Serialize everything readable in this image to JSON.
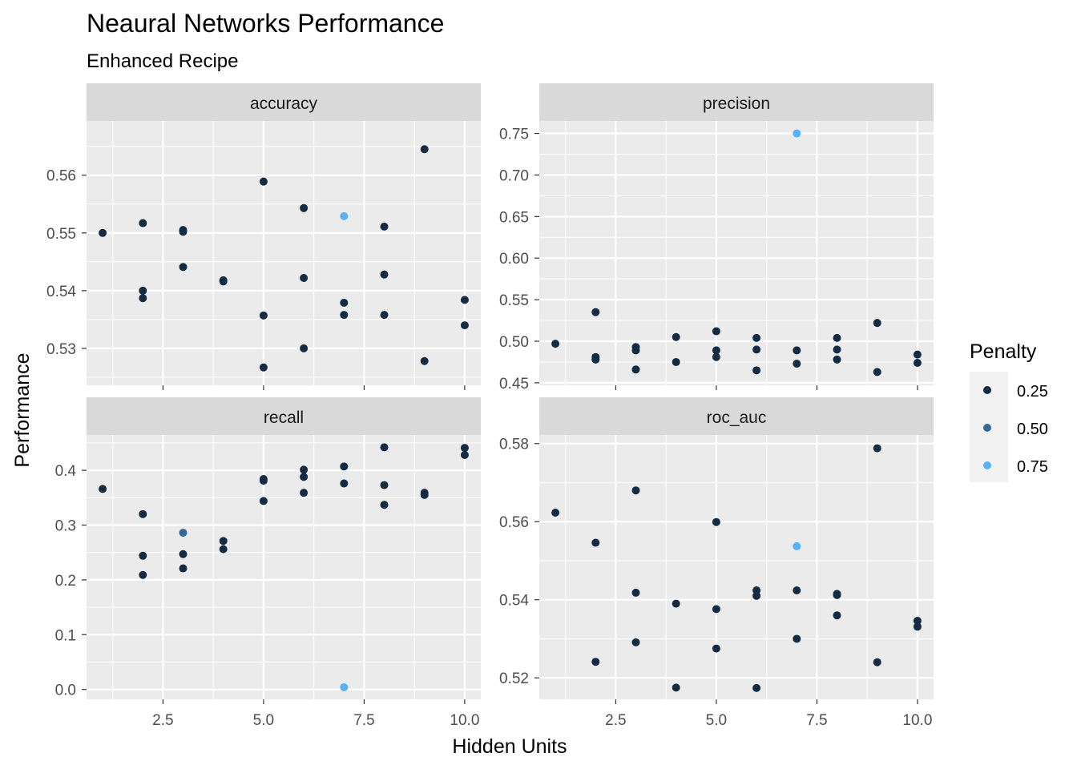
{
  "chart_data": {
    "type": "scatter",
    "title": "Neaural Networks Performance",
    "subtitle": "Enhanced Recipe",
    "xlabel": "Hidden Units",
    "ylabel": "Performance",
    "grid": true,
    "legend": {
      "title": "Penalty",
      "placement": "right",
      "entries": [
        {
          "label": "0.25",
          "color": "#132B43"
        },
        {
          "label": "0.50",
          "color": "#336A98"
        },
        {
          "label": "0.75",
          "color": "#56B1F7"
        }
      ]
    },
    "facets": [
      {
        "name": "accuracy",
        "xlim": [
          0.6,
          10.4
        ],
        "ylim": [
          0.5236,
          0.5694
        ],
        "x_ticks": [
          2.5,
          5.0,
          7.5,
          10.0
        ],
        "x_tick_labels": [],
        "y_ticks": [
          0.53,
          0.54,
          0.55,
          0.56
        ],
        "y_tick_labels": [
          "0.53",
          "0.54",
          "0.55",
          "0.56"
        ],
        "points": [
          {
            "x": 1,
            "y": 0.55,
            "penalty": 0.25
          },
          {
            "x": 2,
            "y": 0.5517,
            "penalty": 0.25
          },
          {
            "x": 2,
            "y": 0.54,
            "penalty": 0.25
          },
          {
            "x": 2,
            "y": 0.5387,
            "penalty": 0.25
          },
          {
            "x": 3,
            "y": 0.5505,
            "penalty": 0.25
          },
          {
            "x": 3,
            "y": 0.5502,
            "penalty": 0.25
          },
          {
            "x": 3,
            "y": 0.5441,
            "penalty": 0.25
          },
          {
            "x": 4,
            "y": 0.5416,
            "penalty": 0.25
          },
          {
            "x": 4,
            "y": 0.5418,
            "penalty": 0.25
          },
          {
            "x": 5,
            "y": 0.5589,
            "penalty": 0.25
          },
          {
            "x": 5,
            "y": 0.5357,
            "penalty": 0.25
          },
          {
            "x": 5,
            "y": 0.5267,
            "penalty": 0.25
          },
          {
            "x": 6,
            "y": 0.5543,
            "penalty": 0.25
          },
          {
            "x": 6,
            "y": 0.5422,
            "penalty": 0.25
          },
          {
            "x": 6,
            "y": 0.53,
            "penalty": 0.25
          },
          {
            "x": 7,
            "y": 0.5529,
            "penalty": 0.75
          },
          {
            "x": 7,
            "y": 0.5379,
            "penalty": 0.25
          },
          {
            "x": 7,
            "y": 0.5358,
            "penalty": 0.25
          },
          {
            "x": 8,
            "y": 0.5511,
            "penalty": 0.25
          },
          {
            "x": 8,
            "y": 0.5428,
            "penalty": 0.25
          },
          {
            "x": 8,
            "y": 0.5358,
            "penalty": 0.25
          },
          {
            "x": 9,
            "y": 0.5645,
            "penalty": 0.25
          },
          {
            "x": 9,
            "y": 0.5278,
            "penalty": 0.25
          },
          {
            "x": 10,
            "y": 0.5384,
            "penalty": 0.25
          },
          {
            "x": 10,
            "y": 0.534,
            "penalty": 0.25
          }
        ]
      },
      {
        "name": "precision",
        "xlim": [
          0.6,
          10.4
        ],
        "ylim": [
          0.447,
          0.765
        ],
        "x_ticks": [
          2.5,
          5.0,
          7.5,
          10.0
        ],
        "x_tick_labels": [],
        "y_ticks": [
          0.45,
          0.5,
          0.55,
          0.6,
          0.65,
          0.7,
          0.75
        ],
        "y_tick_labels": [
          "0.45",
          "0.50",
          "0.55",
          "0.60",
          "0.65",
          "0.70",
          "0.75"
        ],
        "points": [
          {
            "x": 1,
            "y": 0.497,
            "penalty": 0.25
          },
          {
            "x": 2,
            "y": 0.535,
            "penalty": 0.25
          },
          {
            "x": 2,
            "y": 0.481,
            "penalty": 0.25
          },
          {
            "x": 2,
            "y": 0.478,
            "penalty": 0.25
          },
          {
            "x": 3,
            "y": 0.493,
            "penalty": 0.25
          },
          {
            "x": 3,
            "y": 0.489,
            "penalty": 0.25
          },
          {
            "x": 3,
            "y": 0.466,
            "penalty": 0.25
          },
          {
            "x": 4,
            "y": 0.505,
            "penalty": 0.25
          },
          {
            "x": 4,
            "y": 0.475,
            "penalty": 0.25
          },
          {
            "x": 5,
            "y": 0.512,
            "penalty": 0.25
          },
          {
            "x": 5,
            "y": 0.489,
            "penalty": 0.25
          },
          {
            "x": 5,
            "y": 0.481,
            "penalty": 0.25
          },
          {
            "x": 6,
            "y": 0.504,
            "penalty": 0.25
          },
          {
            "x": 6,
            "y": 0.49,
            "penalty": 0.25
          },
          {
            "x": 6,
            "y": 0.465,
            "penalty": 0.25
          },
          {
            "x": 7,
            "y": 0.75,
            "penalty": 0.75
          },
          {
            "x": 7,
            "y": 0.489,
            "penalty": 0.25
          },
          {
            "x": 7,
            "y": 0.473,
            "penalty": 0.25
          },
          {
            "x": 8,
            "y": 0.504,
            "penalty": 0.25
          },
          {
            "x": 8,
            "y": 0.49,
            "penalty": 0.25
          },
          {
            "x": 8,
            "y": 0.478,
            "penalty": 0.25
          },
          {
            "x": 9,
            "y": 0.522,
            "penalty": 0.25
          },
          {
            "x": 9,
            "y": 0.463,
            "penalty": 0.25
          },
          {
            "x": 10,
            "y": 0.484,
            "penalty": 0.25
          },
          {
            "x": 10,
            "y": 0.474,
            "penalty": 0.25
          }
        ]
      },
      {
        "name": "recall",
        "xlim": [
          0.6,
          10.4
        ],
        "ylim": [
          -0.018,
          0.4645
        ],
        "x_ticks": [
          2.5,
          5.0,
          7.5,
          10.0
        ],
        "x_tick_labels": [
          "2.5",
          "5.0",
          "7.5",
          "10.0"
        ],
        "y_ticks": [
          0.0,
          0.1,
          0.2,
          0.3,
          0.4
        ],
        "y_tick_labels": [
          "0.0",
          "0.1",
          "0.2",
          "0.3",
          "0.4"
        ],
        "points": [
          {
            "x": 1,
            "y": 0.366,
            "penalty": 0.25
          },
          {
            "x": 2,
            "y": 0.32,
            "penalty": 0.25
          },
          {
            "x": 2,
            "y": 0.244,
            "penalty": 0.25
          },
          {
            "x": 2,
            "y": 0.209,
            "penalty": 0.25
          },
          {
            "x": 3,
            "y": 0.286,
            "penalty": 0.5
          },
          {
            "x": 3,
            "y": 0.247,
            "penalty": 0.25
          },
          {
            "x": 3,
            "y": 0.221,
            "penalty": 0.25
          },
          {
            "x": 4,
            "y": 0.271,
            "penalty": 0.25
          },
          {
            "x": 4,
            "y": 0.256,
            "penalty": 0.25
          },
          {
            "x": 5,
            "y": 0.384,
            "penalty": 0.25
          },
          {
            "x": 5,
            "y": 0.381,
            "penalty": 0.25
          },
          {
            "x": 5,
            "y": 0.344,
            "penalty": 0.25
          },
          {
            "x": 6,
            "y": 0.401,
            "penalty": 0.25
          },
          {
            "x": 6,
            "y": 0.388,
            "penalty": 0.25
          },
          {
            "x": 6,
            "y": 0.359,
            "penalty": 0.25
          },
          {
            "x": 7,
            "y": 0.407,
            "penalty": 0.25
          },
          {
            "x": 7,
            "y": 0.376,
            "penalty": 0.25
          },
          {
            "x": 7,
            "y": 0.004,
            "penalty": 0.75
          },
          {
            "x": 8,
            "y": 0.442,
            "penalty": 0.25
          },
          {
            "x": 8,
            "y": 0.373,
            "penalty": 0.25
          },
          {
            "x": 8,
            "y": 0.337,
            "penalty": 0.25
          },
          {
            "x": 9,
            "y": 0.359,
            "penalty": 0.25
          },
          {
            "x": 9,
            "y": 0.355,
            "penalty": 0.25
          },
          {
            "x": 10,
            "y": 0.441,
            "penalty": 0.25
          },
          {
            "x": 10,
            "y": 0.428,
            "penalty": 0.25
          }
        ]
      },
      {
        "name": "roc_auc",
        "xlim": [
          0.6,
          10.4
        ],
        "ylim": [
          0.5145,
          0.5822
        ],
        "x_ticks": [
          2.5,
          5.0,
          7.5,
          10.0
        ],
        "x_tick_labels": [
          "2.5",
          "5.0",
          "7.5",
          "10.0"
        ],
        "y_ticks": [
          0.52,
          0.54,
          0.56,
          0.58
        ],
        "y_tick_labels": [
          "0.52",
          "0.54",
          "0.56",
          "0.58"
        ],
        "points": [
          {
            "x": 1,
            "y": 0.5623,
            "penalty": 0.25
          },
          {
            "x": 2,
            "y": 0.5546,
            "penalty": 0.25
          },
          {
            "x": 2,
            "y": 0.5241,
            "penalty": 0.25
          },
          {
            "x": 3,
            "y": 0.568,
            "penalty": 0.25
          },
          {
            "x": 3,
            "y": 0.5418,
            "penalty": 0.25
          },
          {
            "x": 3,
            "y": 0.5291,
            "penalty": 0.25
          },
          {
            "x": 4,
            "y": 0.539,
            "penalty": 0.25
          },
          {
            "x": 4,
            "y": 0.5175,
            "penalty": 0.25
          },
          {
            "x": 5,
            "y": 0.5599,
            "penalty": 0.25
          },
          {
            "x": 5,
            "y": 0.5376,
            "penalty": 0.25
          },
          {
            "x": 5,
            "y": 0.5275,
            "penalty": 0.25
          },
          {
            "x": 6,
            "y": 0.5424,
            "penalty": 0.25
          },
          {
            "x": 6,
            "y": 0.541,
            "penalty": 0.25
          },
          {
            "x": 6,
            "y": 0.5174,
            "penalty": 0.25
          },
          {
            "x": 7,
            "y": 0.5537,
            "penalty": 0.75
          },
          {
            "x": 7,
            "y": 0.5424,
            "penalty": 0.25
          },
          {
            "x": 7,
            "y": 0.53,
            "penalty": 0.25
          },
          {
            "x": 8,
            "y": 0.5415,
            "penalty": 0.25
          },
          {
            "x": 8,
            "y": 0.5412,
            "penalty": 0.25
          },
          {
            "x": 8,
            "y": 0.536,
            "penalty": 0.25
          },
          {
            "x": 9,
            "y": 0.5788,
            "penalty": 0.25
          },
          {
            "x": 9,
            "y": 0.524,
            "penalty": 0.25
          },
          {
            "x": 10,
            "y": 0.5346,
            "penalty": 0.25
          },
          {
            "x": 10,
            "y": 0.5331,
            "penalty": 0.25
          }
        ]
      }
    ]
  }
}
